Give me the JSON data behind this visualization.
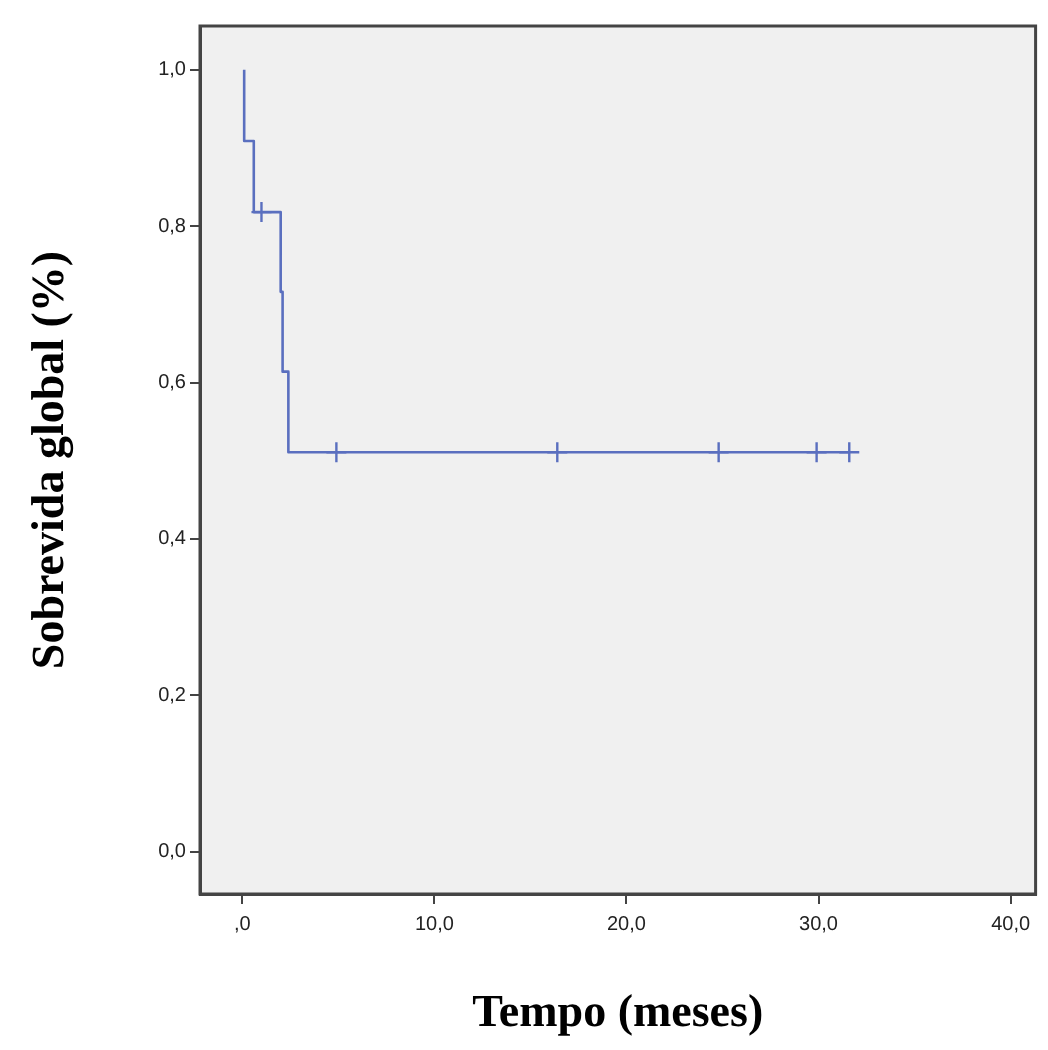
{
  "chart_data": {
    "type": "step",
    "xlabel": "Tempo (meses)",
    "ylabel": "Sobrevida global (%)",
    "xlim": [
      -2.2,
      41.3
    ],
    "ylim": [
      -0.054,
      1.056
    ],
    "xticks": [
      {
        "value": 0,
        "label": ",0"
      },
      {
        "value": 10,
        "label": "10,0"
      },
      {
        "value": 20,
        "label": "20,0"
      },
      {
        "value": 30,
        "label": "30,0"
      },
      {
        "value": 40,
        "label": "40,0"
      }
    ],
    "yticks": [
      {
        "value": 0,
        "label": "0,0"
      },
      {
        "value": 0.2,
        "label": "0,2"
      },
      {
        "value": 0.4,
        "label": "0,4"
      },
      {
        "value": 0.6,
        "label": "0,6"
      },
      {
        "value": 0.8,
        "label": "0,8"
      },
      {
        "value": 1,
        "label": "1,0"
      }
    ],
    "grid": false,
    "legend": false,
    "series": [
      {
        "type": "step",
        "color": "#5a6fbf",
        "x": [
          0.1,
          0.1,
          0.6,
          2.0,
          2.1,
          2.4,
          31.6
        ],
        "values": [
          1.0,
          0.909,
          0.818,
          0.716,
          0.614,
          0.511,
          0.511
        ],
        "marker": "none"
      },
      {
        "type": "scatter",
        "color": "#5a6fbf",
        "x": [
          1.0,
          4.9,
          16.4,
          24.8,
          29.9,
          31.6
        ],
        "values": [
          0.818,
          0.511,
          0.511,
          0.511,
          0.511,
          0.511
        ],
        "marker": "cross"
      }
    ]
  }
}
